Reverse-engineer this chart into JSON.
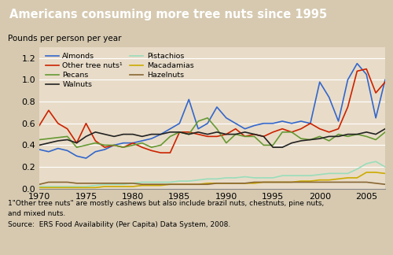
{
  "title": "Americans consuming more tree nuts since 1995",
  "ylabel": "Pounds per person per year",
  "title_bg_color": "#7B5C2E",
  "plot_bg_color": "#E8DCC8",
  "footer_bg_color": "#D6C9B0",
  "header_text_color": "#FFFFFF",
  "footnote1": "1\"Other tree nuts\" are mostly cashews but also include brazil nuts, chestnuts, pine nuts,",
  "footnote2": "and mixed nuts.",
  "source": "Source:  ERS Food Availability (Per Capita) Data System, 2008.",
  "years": [
    1970,
    1971,
    1972,
    1973,
    1974,
    1975,
    1976,
    1977,
    1978,
    1979,
    1980,
    1981,
    1982,
    1983,
    1984,
    1985,
    1986,
    1987,
    1988,
    1989,
    1990,
    1991,
    1992,
    1993,
    1994,
    1995,
    1996,
    1997,
    1998,
    1999,
    2000,
    2001,
    2002,
    2003,
    2004,
    2005,
    2006,
    2007
  ],
  "almonds": [
    0.36,
    0.34,
    0.37,
    0.35,
    0.3,
    0.28,
    0.34,
    0.36,
    0.4,
    0.42,
    0.42,
    0.44,
    0.46,
    0.5,
    0.55,
    0.6,
    0.82,
    0.55,
    0.6,
    0.75,
    0.65,
    0.6,
    0.55,
    0.58,
    0.6,
    0.6,
    0.62,
    0.6,
    0.62,
    0.6,
    0.98,
    0.84,
    0.62,
    1.0,
    1.15,
    1.05,
    0.65,
    1.0
  ],
  "other_tree_nuts": [
    0.58,
    0.72,
    0.6,
    0.55,
    0.42,
    0.6,
    0.44,
    0.38,
    0.4,
    0.38,
    0.42,
    0.38,
    0.35,
    0.33,
    0.33,
    0.52,
    0.52,
    0.5,
    0.48,
    0.48,
    0.5,
    0.55,
    0.48,
    0.5,
    0.48,
    0.52,
    0.55,
    0.52,
    0.55,
    0.6,
    0.55,
    0.52,
    0.55,
    0.75,
    1.08,
    1.1,
    0.88,
    0.98
  ],
  "pecans": [
    0.45,
    0.46,
    0.47,
    0.48,
    0.38,
    0.4,
    0.42,
    0.4,
    0.4,
    0.38,
    0.4,
    0.42,
    0.38,
    0.4,
    0.48,
    0.52,
    0.5,
    0.62,
    0.65,
    0.55,
    0.42,
    0.5,
    0.48,
    0.48,
    0.4,
    0.4,
    0.52,
    0.52,
    0.46,
    0.45,
    0.48,
    0.44,
    0.5,
    0.48,
    0.5,
    0.48,
    0.45,
    0.52
  ],
  "walnuts": [
    0.4,
    0.42,
    0.44,
    0.45,
    0.42,
    0.48,
    0.52,
    0.5,
    0.48,
    0.5,
    0.5,
    0.48,
    0.5,
    0.5,
    0.52,
    0.52,
    0.5,
    0.52,
    0.5,
    0.52,
    0.5,
    0.5,
    0.52,
    0.5,
    0.48,
    0.38,
    0.38,
    0.42,
    0.44,
    0.45,
    0.46,
    0.48,
    0.48,
    0.5,
    0.5,
    0.52,
    0.5,
    0.55
  ],
  "pistachios": [
    0.02,
    0.02,
    0.02,
    0.02,
    0.02,
    0.02,
    0.03,
    0.04,
    0.04,
    0.04,
    0.05,
    0.06,
    0.06,
    0.06,
    0.06,
    0.07,
    0.07,
    0.08,
    0.09,
    0.09,
    0.1,
    0.1,
    0.11,
    0.1,
    0.1,
    0.1,
    0.12,
    0.12,
    0.12,
    0.12,
    0.13,
    0.14,
    0.14,
    0.14,
    0.18,
    0.23,
    0.25,
    0.2
  ],
  "macadamias": [
    0.01,
    0.01,
    0.01,
    0.01,
    0.01,
    0.01,
    0.01,
    0.02,
    0.02,
    0.02,
    0.02,
    0.03,
    0.03,
    0.03,
    0.04,
    0.04,
    0.04,
    0.04,
    0.05,
    0.05,
    0.05,
    0.05,
    0.05,
    0.05,
    0.06,
    0.06,
    0.06,
    0.06,
    0.07,
    0.07,
    0.08,
    0.08,
    0.09,
    0.1,
    0.1,
    0.15,
    0.15,
    0.14
  ],
  "hazelnuts": [
    0.04,
    0.06,
    0.06,
    0.06,
    0.05,
    0.05,
    0.05,
    0.05,
    0.05,
    0.05,
    0.05,
    0.04,
    0.04,
    0.04,
    0.04,
    0.04,
    0.04,
    0.04,
    0.04,
    0.05,
    0.05,
    0.05,
    0.05,
    0.06,
    0.06,
    0.06,
    0.06,
    0.06,
    0.06,
    0.06,
    0.06,
    0.06,
    0.06,
    0.06,
    0.06,
    0.06,
    0.05,
    0.04
  ],
  "line_colors": {
    "almonds": "#3366CC",
    "other_tree_nuts": "#CC2200",
    "pecans": "#669933",
    "walnuts": "#222222",
    "pistachios": "#99DDBB",
    "macadamias": "#CCAA00",
    "hazelnuts": "#886633"
  },
  "ylim": [
    0,
    1.3
  ],
  "xlim": [
    1970,
    2007
  ]
}
